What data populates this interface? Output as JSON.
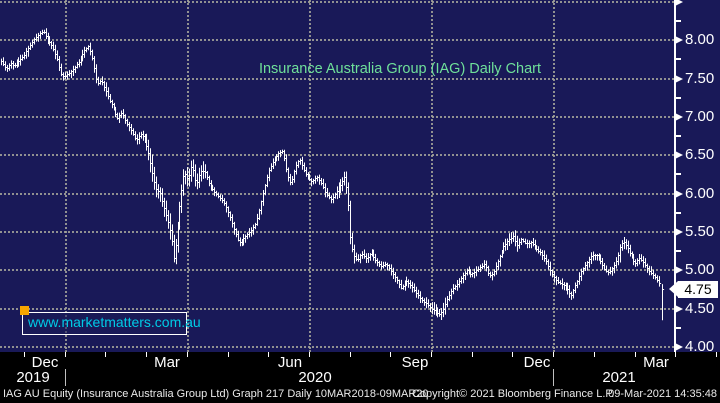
{
  "chart_data": {
    "type": "ohlc-bar",
    "title": "Insurance Australia Group (IAG) Daily Chart",
    "watermark": "www.marketmatters.com.au",
    "ylim": [
      4.0,
      8.52
    ],
    "yticks_major": [
      8.0,
      7.5,
      7.0,
      6.5,
      6.0,
      5.5,
      5.0,
      4.5,
      4.0
    ],
    "ytick_unlabeled_top": 8.5,
    "yticks_minor": [
      8.25,
      7.75,
      7.25,
      6.75,
      6.25,
      5.75,
      5.25,
      4.25
    ],
    "grid": true,
    "last_price": 4.75,
    "x_axis": {
      "months": [
        {
          "label": "Dec",
          "x": 45
        },
        {
          "label": "Mar",
          "x": 167
        },
        {
          "label": "Jun",
          "x": 290
        },
        {
          "label": "Sep",
          "x": 415
        },
        {
          "label": "Dec",
          "x": 537
        },
        {
          "label": "Mar",
          "x": 656
        }
      ],
      "years": [
        {
          "label": "2019",
          "x": 33
        },
        {
          "label": "2020",
          "x": 315
        },
        {
          "label": "2021",
          "x": 619
        }
      ],
      "month_tick_start": 24,
      "month_tick_step": 40.7,
      "month_tick_count": 18,
      "year_separators_x": [
        64.7,
        553.1
      ],
      "quarter_gridlines_x": [
        64.7,
        186.8,
        308.9,
        431.0,
        553.1
      ]
    },
    "series": {
      "name": "IAG AU Equity daily price bars",
      "x_unit": "px",
      "anchors": [
        [
          1,
          7.72
        ],
        [
          6,
          7.62
        ],
        [
          10,
          7.7
        ],
        [
          14,
          7.66
        ],
        [
          18,
          7.72
        ],
        [
          24,
          7.8
        ],
        [
          30,
          7.93
        ],
        [
          36,
          8.04
        ],
        [
          43,
          8.12
        ],
        [
          47,
          8.02
        ],
        [
          52,
          7.92
        ],
        [
          57,
          7.76
        ],
        [
          61,
          7.55
        ],
        [
          64,
          7.52
        ],
        [
          68,
          7.56
        ],
        [
          73,
          7.62
        ],
        [
          79,
          7.72
        ],
        [
          85,
          7.88
        ],
        [
          89,
          7.92
        ],
        [
          93,
          7.72
        ],
        [
          97,
          7.42
        ],
        [
          101,
          7.48
        ],
        [
          105,
          7.35
        ],
        [
          109,
          7.22
        ],
        [
          113,
          7.12
        ],
        [
          117,
          6.98
        ],
        [
          122,
          7.05
        ],
        [
          127,
          6.9
        ],
        [
          132,
          6.8
        ],
        [
          136,
          6.68
        ],
        [
          140,
          6.78
        ],
        [
          144,
          6.72
        ],
        [
          148,
          6.55
        ],
        [
          152,
          6.28
        ],
        [
          156,
          6.05
        ],
        [
          160,
          6.0
        ],
        [
          164,
          5.8
        ],
        [
          168,
          5.62
        ],
        [
          171,
          5.45
        ],
        [
          174,
          5.12
        ],
        [
          177,
          5.5
        ],
        [
          180,
          5.9
        ],
        [
          184,
          6.28
        ],
        [
          188,
          6.18
        ],
        [
          192,
          6.38
        ],
        [
          196,
          6.1
        ],
        [
          200,
          6.28
        ],
        [
          204,
          6.3
        ],
        [
          209,
          6.12
        ],
        [
          214,
          6.02
        ],
        [
          219,
          5.95
        ],
        [
          224,
          5.88
        ],
        [
          229,
          5.72
        ],
        [
          234,
          5.52
        ],
        [
          239,
          5.35
        ],
        [
          244,
          5.42
        ],
        [
          250,
          5.5
        ],
        [
          256,
          5.62
        ],
        [
          262,
          5.95
        ],
        [
          268,
          6.28
        ],
        [
          273,
          6.42
        ],
        [
          278,
          6.52
        ],
        [
          283,
          6.55
        ],
        [
          287,
          6.25
        ],
        [
          291,
          6.12
        ],
        [
          295,
          6.35
        ],
        [
          299,
          6.45
        ],
        [
          303,
          6.32
        ],
        [
          307,
          6.22
        ],
        [
          312,
          6.15
        ],
        [
          317,
          6.22
        ],
        [
          322,
          6.12
        ],
        [
          326,
          5.98
        ],
        [
          331,
          5.92
        ],
        [
          336,
          6.02
        ],
        [
          341,
          6.12
        ],
        [
          345,
          6.22
        ],
        [
          348,
          5.9
        ],
        [
          350,
          5.45
        ],
        [
          353,
          5.2
        ],
        [
          357,
          5.12
        ],
        [
          361,
          5.22
        ],
        [
          366,
          5.15
        ],
        [
          371,
          5.22
        ],
        [
          376,
          5.12
        ],
        [
          381,
          5.05
        ],
        [
          386,
          5.08
        ],
        [
          391,
          4.98
        ],
        [
          396,
          4.88
        ],
        [
          401,
          4.76
        ],
        [
          406,
          4.86
        ],
        [
          411,
          4.8
        ],
        [
          416,
          4.7
        ],
        [
          421,
          4.62
        ],
        [
          426,
          4.56
        ],
        [
          431,
          4.5
        ],
        [
          435,
          4.47
        ],
        [
          439,
          4.42
        ],
        [
          443,
          4.48
        ],
        [
          447,
          4.62
        ],
        [
          452,
          4.75
        ],
        [
          457,
          4.82
        ],
        [
          462,
          4.92
        ],
        [
          467,
          5.0
        ],
        [
          471,
          4.94
        ],
        [
          475,
          4.98
        ],
        [
          480,
          5.03
        ],
        [
          485,
          5.08
        ],
        [
          489,
          4.92
        ],
        [
          493,
          4.96
        ],
        [
          498,
          5.12
        ],
        [
          503,
          5.3
        ],
        [
          508,
          5.38
        ],
        [
          513,
          5.44
        ],
        [
          517,
          5.32
        ],
        [
          521,
          5.4
        ],
        [
          526,
          5.34
        ],
        [
          531,
          5.36
        ],
        [
          536,
          5.28
        ],
        [
          541,
          5.22
        ],
        [
          546,
          5.12
        ],
        [
          551,
          4.96
        ],
        [
          556,
          4.86
        ],
        [
          561,
          4.82
        ],
        [
          566,
          4.78
        ],
        [
          571,
          4.66
        ],
        [
          576,
          4.82
        ],
        [
          581,
          4.98
        ],
        [
          586,
          5.08
        ],
        [
          591,
          5.18
        ],
        [
          596,
          5.2
        ],
        [
          601,
          5.1
        ],
        [
          605,
          5.0
        ],
        [
          609,
          4.96
        ],
        [
          613,
          5.04
        ],
        [
          617,
          5.14
        ],
        [
          620,
          5.3
        ],
        [
          623,
          5.38
        ],
        [
          627,
          5.3
        ],
        [
          631,
          5.18
        ],
        [
          635,
          5.08
        ],
        [
          639,
          5.16
        ],
        [
          643,
          5.1
        ],
        [
          647,
          5.02
        ],
        [
          651,
          4.96
        ],
        [
          655,
          4.9
        ],
        [
          658,
          4.84
        ],
        [
          661,
          4.78
        ],
        [
          663,
          4.75
        ]
      ],
      "last_bar": {
        "x": 662,
        "high": 4.82,
        "low": 4.35,
        "close": 4.75
      },
      "volatility_zones": [
        [
          146,
          205,
          0.05
        ],
        [
          338,
          356,
          0.03
        ],
        [
          430,
          446,
          0.02
        ],
        [
          505,
          520,
          0.02
        ],
        [
          618,
          626,
          0.02
        ]
      ]
    }
  },
  "labels": {
    "last_price": "4.75"
  },
  "footer": {
    "left": "IAG AU Equity (Insurance Australia Group Ltd) Graph 217  Daily 10MAR2018-09MAR20",
    "copyright": "Copyright© 2021 Bloomberg Finance L.P.",
    "timestamp": "09-Mar-2021 14:35:48"
  },
  "colors": {
    "background": "#191958",
    "footer_background": "#000000",
    "bars": "#ffffff",
    "grid": "#a7a79b",
    "title": "#6fe09a",
    "watermark": "#00cbe6",
    "watermark_square": "#f7a600",
    "axis": "#ffffff",
    "flag_background": "#ffffff",
    "flag_text": "#000000",
    "labels": "#ffffff"
  }
}
